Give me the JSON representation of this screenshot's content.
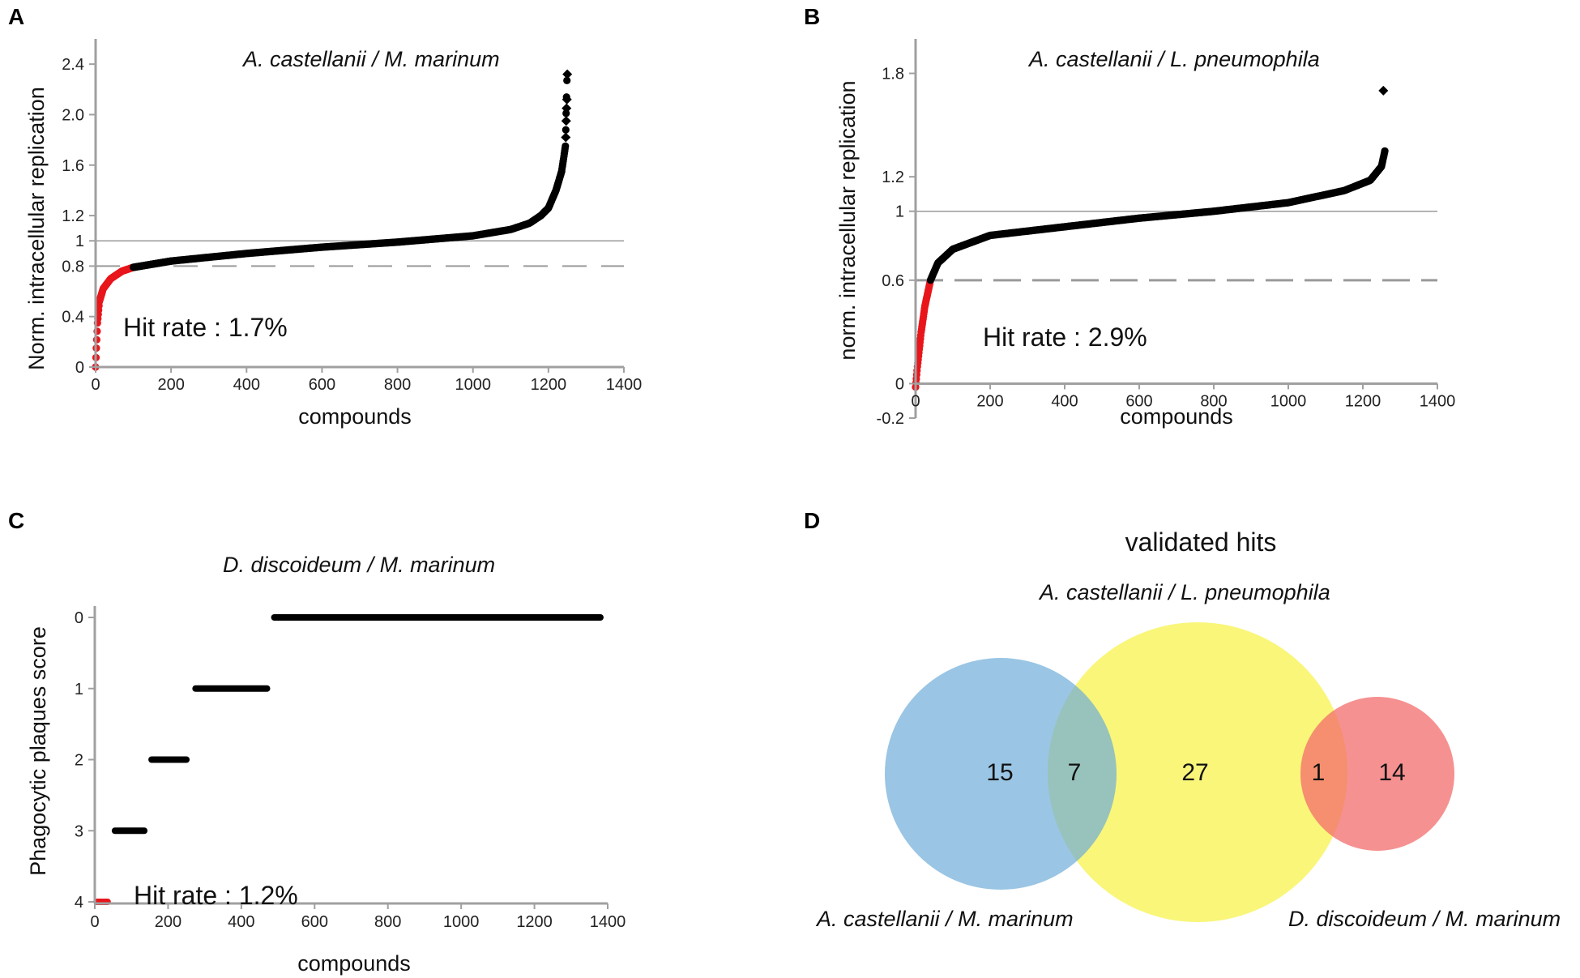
{
  "chart_data": [
    {
      "panel": "A",
      "type": "scatter",
      "title": "A. castellanii / M. marinum",
      "xlabel": "compounds",
      "ylabel": "Norm. intracellular replication",
      "xlim": [
        0,
        1400
      ],
      "ylim": [
        0,
        2.6
      ],
      "xticks": [
        0,
        200,
        400,
        600,
        800,
        1000,
        1200,
        1400
      ],
      "yticks": [
        0,
        0.4,
        0.8,
        1,
        1.2,
        1.6,
        2.0,
        2.4
      ],
      "ytick_labels": [
        "0",
        "0.4",
        "0.8",
        "1",
        "1.2",
        "1.6",
        "2.0",
        "2.4"
      ],
      "reference_line": 1,
      "threshold_line": 0.8,
      "hit_rate": "Hit rate : 1.7%",
      "hit_color": "#e8161b",
      "point_color": "#000000",
      "n_compounds": 1250,
      "n_hits": 100,
      "curve": [
        [
          0,
          0.0
        ],
        [
          2,
          0.15
        ],
        [
          5,
          0.35
        ],
        [
          10,
          0.52
        ],
        [
          20,
          0.62
        ],
        [
          40,
          0.7
        ],
        [
          70,
          0.76
        ],
        [
          100,
          0.79
        ],
        [
          200,
          0.84
        ],
        [
          400,
          0.9
        ],
        [
          600,
          0.95
        ],
        [
          800,
          0.99
        ],
        [
          1000,
          1.04
        ],
        [
          1100,
          1.09
        ],
        [
          1150,
          1.14
        ],
        [
          1180,
          1.2
        ],
        [
          1200,
          1.26
        ],
        [
          1220,
          1.4
        ],
        [
          1235,
          1.55
        ],
        [
          1245,
          1.75
        ],
        [
          1250,
          2.4
        ]
      ],
      "outliers": [
        [
          1246,
          1.82
        ],
        [
          1247,
          1.95
        ],
        [
          1248,
          2.05
        ],
        [
          1249,
          2.12
        ],
        [
          1250,
          2.32
        ]
      ]
    },
    {
      "panel": "B",
      "type": "scatter",
      "title": "A. castellanii / L. pneumophila",
      "xlabel": "compounds",
      "ylabel": "norm. intracellular replication",
      "xlim": [
        0,
        1400
      ],
      "ylim": [
        -0.2,
        2.0
      ],
      "xticks": [
        0,
        200,
        400,
        600,
        800,
        1000,
        1200,
        1400
      ],
      "yticks": [
        -0.2,
        0,
        0.6,
        1,
        1.2,
        1.8
      ],
      "ytick_labels": [
        "-0.2",
        "0",
        "0.6",
        "1",
        "1.2",
        "1.8"
      ],
      "reference_line": 1,
      "threshold_line": 0.6,
      "hit_rate": "Hit rate : 2.9%",
      "hit_color": "#e8161b",
      "point_color": "#000000",
      "n_compounds": 1260,
      "n_hits": 40,
      "curve": [
        [
          0,
          -0.02
        ],
        [
          5,
          0.1
        ],
        [
          15,
          0.3
        ],
        [
          25,
          0.45
        ],
        [
          40,
          0.6
        ],
        [
          60,
          0.7
        ],
        [
          100,
          0.78
        ],
        [
          200,
          0.86
        ],
        [
          400,
          0.91
        ],
        [
          600,
          0.96
        ],
        [
          800,
          1.0
        ],
        [
          1000,
          1.05
        ],
        [
          1150,
          1.12
        ],
        [
          1220,
          1.18
        ],
        [
          1250,
          1.26
        ],
        [
          1260,
          1.36
        ]
      ],
      "outliers": [
        [
          1255,
          1.7
        ]
      ]
    },
    {
      "panel": "C",
      "type": "scatter",
      "title": "D. discoideum / M. marinum",
      "xlabel": "compounds",
      "ylabel": "Phagocytic plaques score",
      "xlim": [
        0,
        1400
      ],
      "ylim": [
        4,
        0
      ],
      "xticks": [
        0,
        200,
        400,
        600,
        800,
        1000,
        1200,
        1400
      ],
      "yticks": [
        0,
        1,
        2,
        3,
        4
      ],
      "ytick_labels": [
        "0",
        "1",
        "2",
        "3",
        "4"
      ],
      "hit_rate": "Hit rate : 1.2%",
      "hit_color": "#e8161b",
      "point_color": "#000000",
      "segments": [
        {
          "x0": 5,
          "x1": 35,
          "score": 4,
          "hit": true
        },
        {
          "x0": 55,
          "x1": 135,
          "score": 3,
          "hit": false
        },
        {
          "x0": 155,
          "x1": 250,
          "score": 2,
          "hit": false
        },
        {
          "x0": 275,
          "x1": 470,
          "score": 1,
          "hit": false
        },
        {
          "x0": 490,
          "x1": 1380,
          "score": 0,
          "hit": false
        }
      ]
    },
    {
      "panel": "D",
      "type": "venn",
      "title": "validated hits",
      "sets": [
        {
          "name": "A. castellanii / M. marinum",
          "color": "#6fadd8"
        },
        {
          "name": "A. castellanii / L. pneumophila",
          "color": "#f8f56b"
        },
        {
          "name": "D. discoideum / M. marinum",
          "color": "#f36c6c"
        }
      ],
      "regions": {
        "a_only": "15",
        "a_and_b": "7",
        "b_only": "27",
        "b_and_c": "1",
        "c_only": "14"
      }
    }
  ]
}
